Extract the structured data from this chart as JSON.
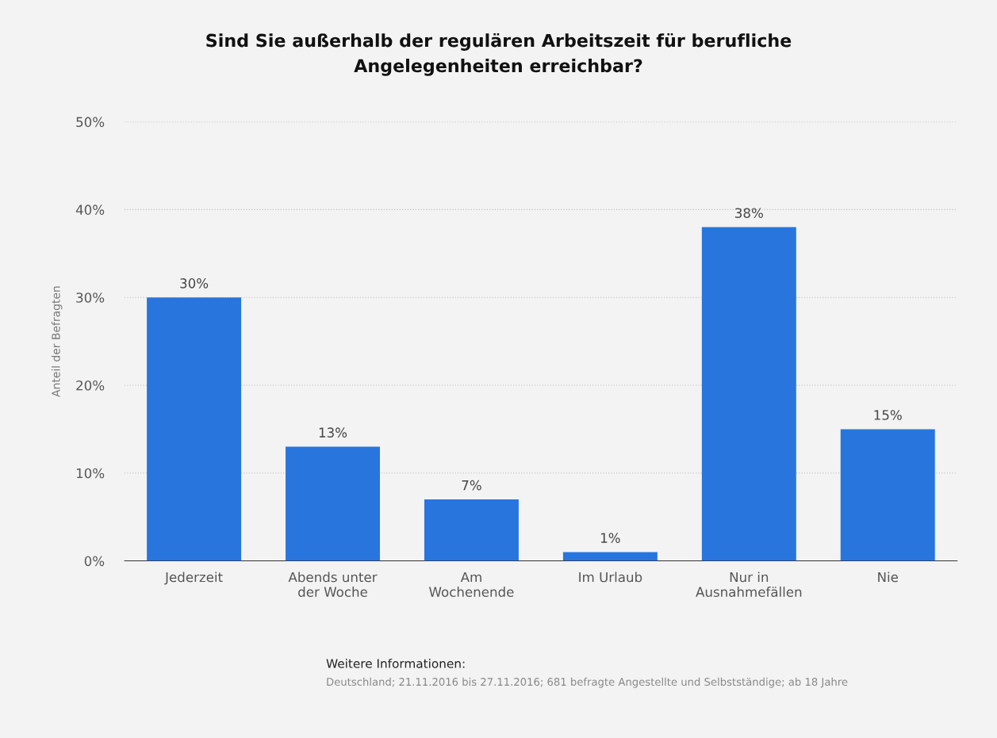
{
  "chart_data": {
    "type": "bar",
    "title": "Sind Sie außerhalb der regulären Arbeitszeit für berufliche\nAngelegenheiten erreichbar?",
    "ylabel": "Anteil der Befragten",
    "categories": [
      "Jederzeit",
      "Abends unter\nder Woche",
      "Am\nWochenende",
      "Im Urlaub",
      "Nur in\nAusnahmefällen",
      "Nie"
    ],
    "values": [
      30,
      13,
      7,
      1,
      38,
      15
    ],
    "value_labels": [
      "30%",
      "13%",
      "7%",
      "1%",
      "38%",
      "15%"
    ],
    "color": "#2875de",
    "ylim": [
      0,
      50
    ],
    "yticks": [
      {
        "value": 0,
        "label": "0%"
      },
      {
        "value": 10,
        "label": "10%"
      },
      {
        "value": 20,
        "label": "20%"
      },
      {
        "value": 30,
        "label": "30%"
      },
      {
        "value": 40,
        "label": "40%"
      },
      {
        "value": 50,
        "label": "50%"
      }
    ],
    "grid": "y",
    "annotations": [
      "Weitere Informationen:",
      "Deutschland; 21.11.2016 bis 27.11.2016; 681 befragte Angestellte und Selbstständige; ab 18 Jahre"
    ]
  }
}
